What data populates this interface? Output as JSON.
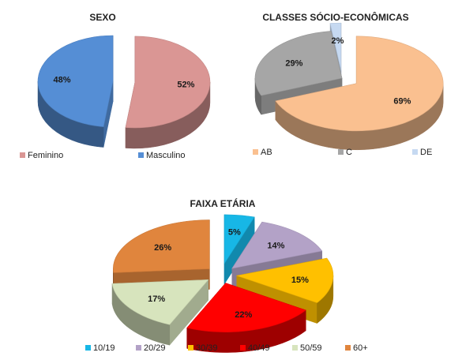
{
  "chart_data": [
    {
      "type": "pie",
      "title": "SEXO",
      "categories": [
        "Feminino",
        "Masculino"
      ],
      "values": [
        52,
        48
      ],
      "value_labels": [
        "52%",
        "48%"
      ],
      "colors": [
        "#da9694",
        "#558ed5"
      ],
      "legend": "bottom"
    },
    {
      "type": "pie",
      "title": "CLASSES SÓCIO-ECONÔMICAS",
      "categories": [
        "AB",
        "C",
        "DE"
      ],
      "values": [
        69,
        29,
        2
      ],
      "value_labels": [
        "69%",
        "29%",
        "2%"
      ],
      "colors": [
        "#fac090",
        "#a6a6a6",
        "#c6d9f1"
      ],
      "legend": "bottom"
    },
    {
      "type": "pie",
      "title": "FAIXA ETÁRIA",
      "categories": [
        "10/19",
        "20/29",
        "30/39",
        "40/49",
        "50/59",
        "60+"
      ],
      "values": [
        5,
        14,
        15,
        22,
        17,
        26
      ],
      "value_labels": [
        "5%",
        "14%",
        "15%",
        "22%",
        "17%",
        "26%"
      ],
      "colors": [
        "#17b7e6",
        "#b3a2c7",
        "#ffc000",
        "#ff0000",
        "#d7e4bd",
        "#e0853d"
      ],
      "legend": "bottom"
    }
  ]
}
